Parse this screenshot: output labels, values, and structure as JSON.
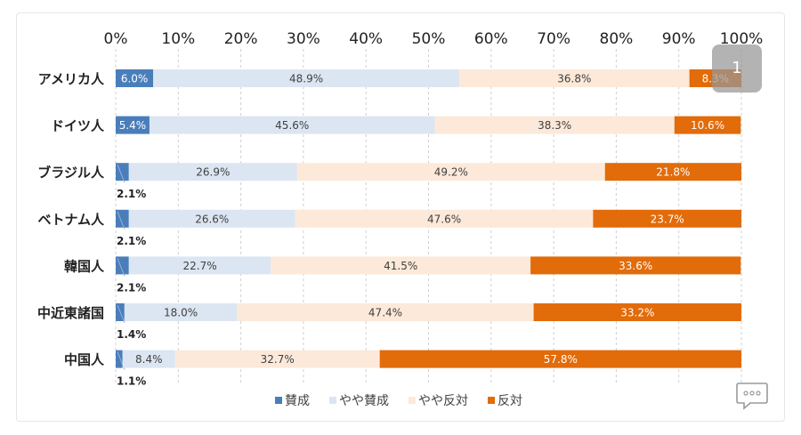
{
  "overlay": {
    "page_number": "1"
  },
  "chart_data": {
    "type": "bar",
    "orientation": "horizontal",
    "stacked": "percent",
    "xlim": [
      0,
      100
    ],
    "x_ticks": [
      "0%",
      "10%",
      "20%",
      "30%",
      "40%",
      "50%",
      "60%",
      "70%",
      "80%",
      "90%",
      "100%"
    ],
    "grid": "vertical dashed",
    "legend_position": "bottom",
    "categories": [
      "アメリカ人",
      "ドイツ人",
      "ブラジル人",
      "ベトナム人",
      "韓国人",
      "中近東諸国",
      "中国人"
    ],
    "series": [
      {
        "name": "賛成",
        "color": "#4a7ebb",
        "values": [
          6.0,
          5.4,
          2.1,
          2.1,
          2.1,
          1.4,
          1.1
        ],
        "labels": [
          "6.0%",
          "5.4%",
          "2.1%",
          "2.1%",
          "2.1%",
          "1.4%",
          "1.1%"
        ]
      },
      {
        "name": "やや賛成",
        "color": "#dce6f2",
        "values": [
          48.9,
          45.6,
          26.9,
          26.6,
          22.7,
          18.0,
          8.4
        ],
        "labels": [
          "48.9%",
          "45.6%",
          "26.9%",
          "26.6%",
          "22.7%",
          "18.0%",
          "8.4%"
        ]
      },
      {
        "name": "やや反対",
        "color": "#fde9d9",
        "values": [
          36.8,
          38.3,
          49.2,
          47.6,
          41.5,
          47.4,
          32.7
        ],
        "labels": [
          "36.8%",
          "38.3%",
          "49.2%",
          "47.6%",
          "41.5%",
          "47.4%",
          "32.7%"
        ]
      },
      {
        "name": "反対",
        "color": "#e26b0a",
        "values": [
          8.3,
          10.6,
          21.8,
          23.7,
          33.6,
          33.2,
          57.8
        ],
        "labels": [
          "8.3%",
          "10.6%",
          "21.8%",
          "23.7%",
          "33.6%",
          "33.2%",
          "57.8%"
        ]
      }
    ]
  }
}
